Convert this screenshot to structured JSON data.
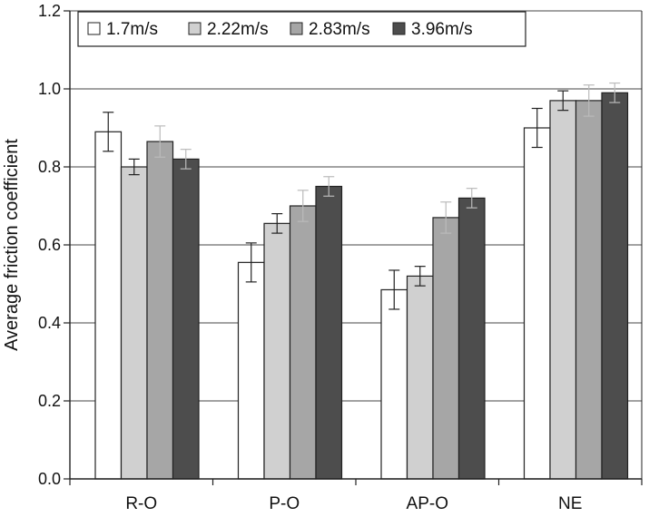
{
  "chart_data": {
    "type": "bar",
    "title": "",
    "xlabel": "",
    "ylabel": "Average friction coefficient",
    "ylim": [
      0,
      1.2
    ],
    "yticks": [
      "0.0",
      "0.2",
      "0.4",
      "0.6",
      "0.8",
      "1.0",
      "1.2"
    ],
    "grid": true,
    "legend_position": "top-left",
    "categories": [
      "R-O",
      "P-O",
      "AP-O",
      "NE"
    ],
    "series": [
      {
        "name": "1.7m/s",
        "color": "#ffffff",
        "values": [
          0.89,
          0.555,
          0.485,
          0.9
        ],
        "errors": [
          0.05,
          0.05,
          0.05,
          0.05
        ]
      },
      {
        "name": "2.22m/s",
        "color": "#d0d0d0",
        "values": [
          0.8,
          0.655,
          0.52,
          0.97
        ],
        "errors": [
          0.02,
          0.025,
          0.025,
          0.025
        ]
      },
      {
        "name": "2.83m/s",
        "color": "#a6a6a6",
        "values": [
          0.865,
          0.7,
          0.67,
          0.97
        ],
        "errors": [
          0.04,
          0.04,
          0.04,
          0.04
        ]
      },
      {
        "name": "3.96m/s",
        "color": "#4d4d4d",
        "values": [
          0.82,
          0.75,
          0.72,
          0.99
        ],
        "errors": [
          0.025,
          0.025,
          0.025,
          0.025
        ]
      }
    ]
  }
}
